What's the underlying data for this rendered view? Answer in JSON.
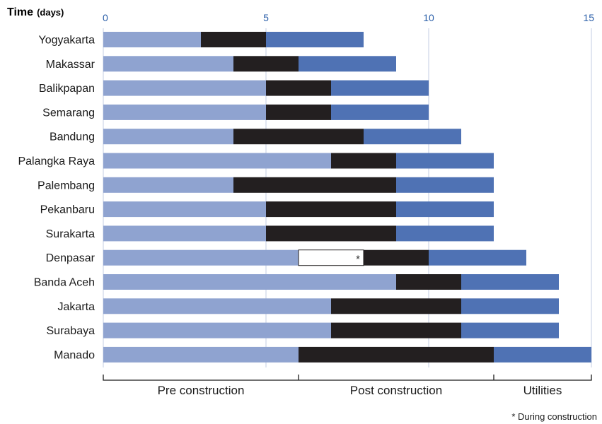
{
  "chart_data": {
    "type": "bar",
    "orientation": "horizontal",
    "stacked": true,
    "xlabel": "Time",
    "xlabel_unit": "(days)",
    "xlim": [
      0,
      15
    ],
    "xticks": [
      "0",
      "5",
      "10",
      "15"
    ],
    "grid": true,
    "categories": [
      "Yogyakarta",
      "Makassar",
      "Balikpapan",
      "Semarang",
      "Bandung",
      "Palangka Raya",
      "Palembang",
      "Pekanbaru",
      "Surakarta",
      "Denpasar",
      "Banda Aceh",
      "Jakarta",
      "Surabaya",
      "Manado"
    ],
    "series": [
      {
        "name": "Pre construction",
        "color": "#8fa3d0",
        "values": [
          3,
          4,
          5,
          5,
          4,
          7,
          4,
          5,
          5,
          6,
          9,
          7,
          7,
          6
        ]
      },
      {
        "name": "During construction",
        "color": "#ffffff",
        "values": [
          0,
          0,
          0,
          0,
          0,
          0,
          0,
          0,
          0,
          2,
          0,
          0,
          0,
          0
        ]
      },
      {
        "name": "Post construction",
        "color": "#231f20",
        "values": [
          2,
          2,
          2,
          2,
          4,
          2,
          5,
          4,
          4,
          2,
          2,
          4,
          4,
          6
        ]
      },
      {
        "name": "Utilities",
        "color": "#4f72b4",
        "values": [
          3,
          3,
          3,
          3,
          3,
          3,
          3,
          3,
          3,
          3,
          3,
          3,
          3,
          3
        ]
      }
    ],
    "during_construction_marker": "*",
    "bracket_labels": [
      "Pre construction",
      "Post construction",
      "Utilities"
    ],
    "footnote": "* During construction"
  }
}
